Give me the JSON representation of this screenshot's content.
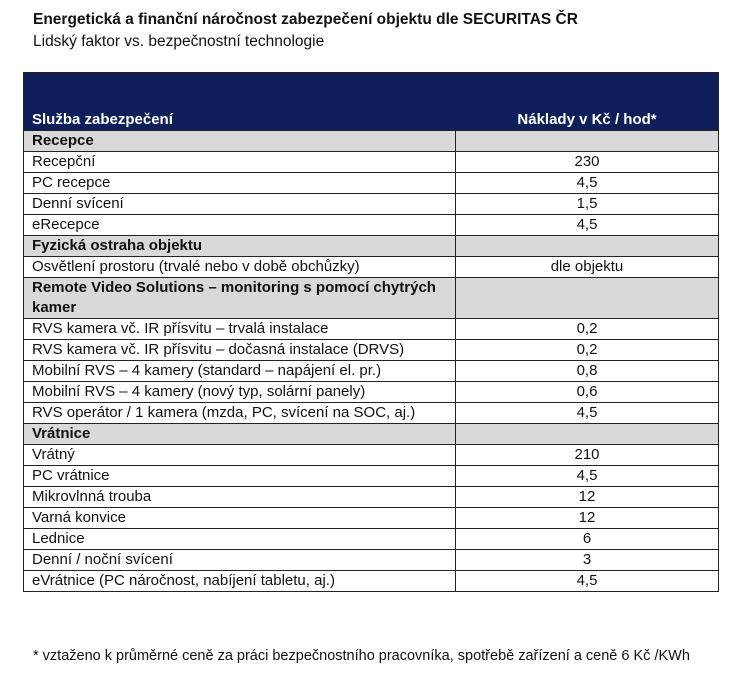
{
  "header": {
    "title": "Energetická a finanční náročnost zabezpečení objektu dle SECURITAS ČR",
    "subtitle": "Lidský faktor vs. bezpečnostní technologie"
  },
  "table": {
    "columns": [
      "Služba zabezpečení",
      "Náklady v Kč / hod*"
    ],
    "sections": [
      {
        "title": "Recepce",
        "rows": [
          [
            "Recepční",
            "230"
          ],
          [
            "PC recepce",
            "4,5"
          ],
          [
            "Denní svícení",
            "1,5"
          ],
          [
            "eRecepce",
            "4,5"
          ]
        ]
      },
      {
        "title": "Fyzická ostraha objektu",
        "rows": [
          [
            "Osvětlení prostoru (trvalé nebo v době obchůzky)",
            "dle objektu"
          ]
        ]
      },
      {
        "title": "Remote Video Solutions – monitoring s pomocí chytrých kamer",
        "rows": [
          [
            "RVS kamera vč. IR přísvitu – trvalá instalace",
            "0,2"
          ],
          [
            "RVS kamera vč. IR přísvitu – dočasná instalace (DRVS)",
            "0,2"
          ],
          [
            "Mobilní RVS – 4 kamery (standard – napájení el. pr.)",
            "0,8"
          ],
          [
            "Mobilní RVS – 4 kamery (nový typ, solární panely)",
            "0,6"
          ],
          [
            "RVS operátor / 1 kamera (mzda, PC, svícení na SOC, aj.)",
            "4,5"
          ]
        ]
      },
      {
        "title": "Vrátnice",
        "rows": [
          [
            "Vrátný",
            "210"
          ],
          [
            "PC vrátnice",
            "4,5"
          ],
          [
            "Mikrovlnná trouba",
            "12"
          ],
          [
            "Varná konvice",
            "12"
          ],
          [
            "Lednice",
            "6"
          ],
          [
            "Denní / noční svícení",
            "3"
          ],
          [
            "eVrátnice (PC náročnost, nabíjení tabletu, aj.)",
            "4,5"
          ]
        ]
      }
    ]
  },
  "footnote": "* vztaženo k průměrné ceně za práci bezpečnostního pracovníka, spotřebě zařízení a ceně 6 Kč /KWh"
}
